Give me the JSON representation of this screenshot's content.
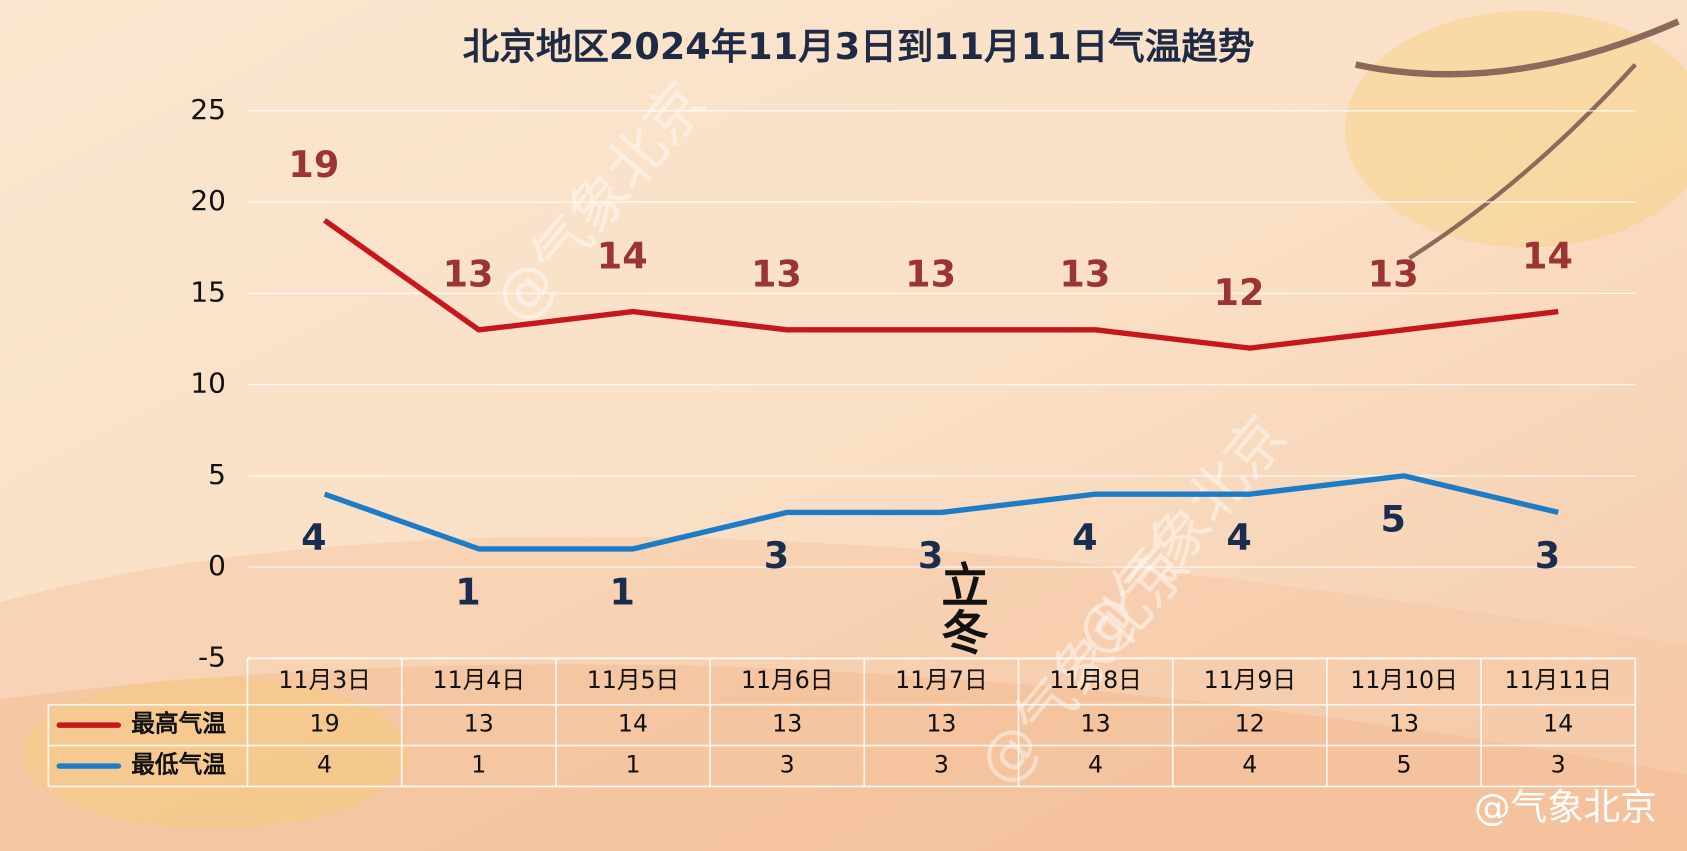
{
  "chart_data": {
    "type": "line",
    "title": "北京地区2024年11月3日到11月11日气温趋势",
    "categories": [
      "11月3日",
      "11月4日",
      "11月5日",
      "11月6日",
      "11月7日",
      "11月8日",
      "11月9日",
      "11月10日",
      "11月11日"
    ],
    "series": [
      {
        "name": "最高气温",
        "color": "#c8161d",
        "values": [
          19,
          13,
          14,
          13,
          13,
          13,
          12,
          13,
          14
        ]
      },
      {
        "name": "最低气温",
        "color": "#1c7cc8",
        "values": [
          4,
          1,
          1,
          3,
          3,
          4,
          4,
          5,
          3
        ]
      }
    ],
    "ylim": [
      -5,
      25
    ],
    "yticks": [
      -5,
      0,
      5,
      10,
      15,
      20,
      25
    ],
    "grid": true,
    "data_table": true,
    "watermark": "@气象北京",
    "solar_term": "立冬",
    "logo_text": "@气象北京"
  }
}
